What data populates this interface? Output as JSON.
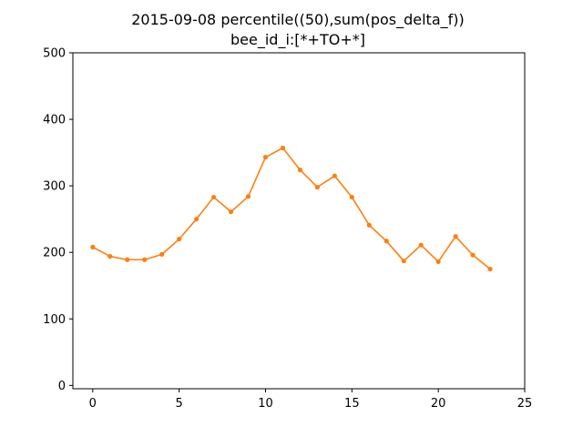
{
  "chart_data": {
    "type": "line",
    "title_line1": "2015-09-08 percentile((50),sum(pos_delta_f))",
    "title_line2": "bee_id_i:[*+TO+*]",
    "xlabel": "",
    "ylabel": "",
    "xlim": [
      -1.15,
      25
    ],
    "ylim": [
      -5,
      500
    ],
    "xticks": [
      0,
      5,
      10,
      15,
      20,
      25
    ],
    "yticks": [
      0,
      100,
      200,
      300,
      400,
      500
    ],
    "grid": false,
    "legend": "none",
    "series": [
      {
        "color": "#ff7f0e",
        "x": [
          0,
          1,
          2,
          3,
          4,
          5,
          6,
          7,
          8,
          9,
          10,
          11,
          12,
          13,
          14,
          15,
          16,
          17,
          18,
          19,
          20,
          21,
          22,
          23
        ],
        "y": [
          208,
          194,
          189,
          189,
          197,
          220,
          250,
          283,
          261,
          284,
          343,
          357,
          324,
          298,
          315,
          283,
          241,
          217,
          187,
          211,
          186,
          224,
          196,
          175
        ]
      }
    ]
  }
}
